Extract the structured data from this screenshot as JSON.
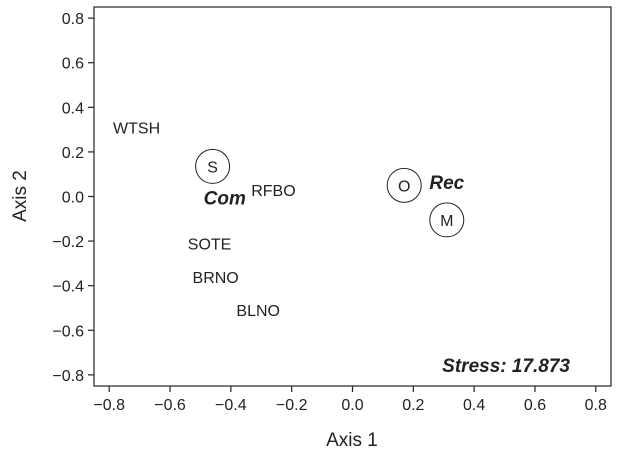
{
  "chart_data": {
    "type": "scatter",
    "xlabel": "Axis 1",
    "ylabel": "Axis 2",
    "xlim": [
      -0.85,
      0.85
    ],
    "ylim": [
      -0.85,
      0.85
    ],
    "xticks": [
      -0.8,
      -0.6,
      -0.4,
      -0.2,
      0.0,
      0.2,
      0.4,
      0.6,
      0.8
    ],
    "yticks": [
      -0.8,
      -0.6,
      -0.4,
      -0.2,
      0.0,
      0.2,
      0.4,
      0.6,
      0.8
    ],
    "xtick_labels": [
      "−0.8",
      "−0.6",
      "−0.4",
      "−0.2",
      "0.0",
      "0.2",
      "0.4",
      "0.6",
      "0.8"
    ],
    "ytick_labels": [
      "−0.8",
      "−0.6",
      "−0.4",
      "−0.2",
      "0.0",
      "0.2",
      "0.4",
      "0.6",
      "0.8"
    ],
    "grid": false,
    "species_labels": [
      {
        "label": "WTSH",
        "x": -0.71,
        "y": 0.31
      },
      {
        "label": "RFBO",
        "x": -0.26,
        "y": 0.03
      },
      {
        "label": "SOTE",
        "x": -0.47,
        "y": -0.21
      },
      {
        "label": "BRNO",
        "x": -0.45,
        "y": -0.36
      },
      {
        "label": "BLNO",
        "x": -0.31,
        "y": -0.51
      }
    ],
    "circled_points": [
      {
        "label": "S",
        "x": -0.46,
        "y": 0.135
      },
      {
        "label": "O",
        "x": 0.17,
        "y": 0.05
      },
      {
        "label": "M",
        "x": 0.31,
        "y": -0.105
      }
    ],
    "group_labels": [
      {
        "label": "Com",
        "x": -0.42,
        "y": -0.005
      },
      {
        "label": "Rec",
        "x": 0.31,
        "y": 0.065
      }
    ],
    "annotation": {
      "text": "Stress: 17.873",
      "position": "bottom-right"
    }
  }
}
